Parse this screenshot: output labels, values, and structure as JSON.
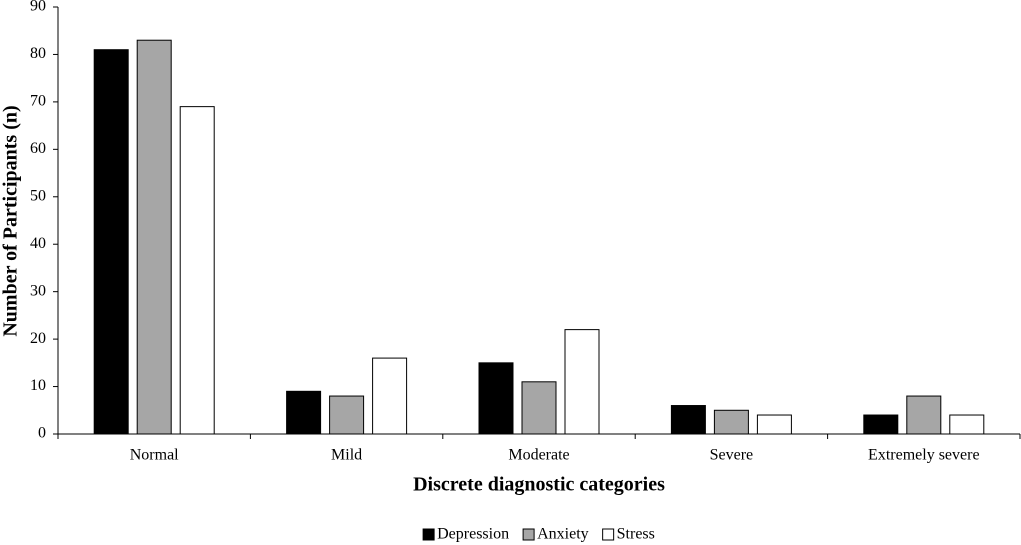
{
  "chart_data": {
    "type": "bar",
    "x_label": "Discrete diagnostic categories",
    "y_label": "Number of Participants (n)",
    "categories": [
      "Normal",
      "Mild",
      "Moderate",
      "Severe",
      "Extremely severe"
    ],
    "series": [
      {
        "name": "Depression",
        "color": "#000000",
        "values": [
          81,
          9,
          15,
          6,
          4
        ]
      },
      {
        "name": "Anxiety",
        "color": "#a6a6a6",
        "values": [
          83,
          8,
          11,
          5,
          8
        ]
      },
      {
        "name": "Stress",
        "color": "#ffffff",
        "values": [
          69,
          16,
          22,
          4,
          4
        ]
      }
    ],
    "ylim": [
      0,
      90
    ],
    "yticks": [
      0,
      10,
      20,
      30,
      40,
      50,
      60,
      70,
      80,
      90
    ],
    "grid": false,
    "legend": "bottom"
  }
}
